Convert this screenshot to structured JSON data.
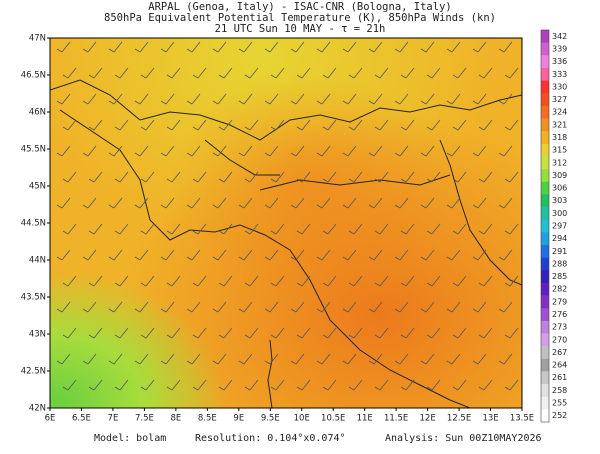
{
  "header": {
    "line1": "ARPAL (Genoa, Italy)  -  ISAC-CNR (Bologna, Italy)",
    "line2": "850hPa Equivalent Potential Temperature (K), 850hPa Winds (kn)",
    "line3": "21 UTC Sun 10 MAY  -  τ = 21h"
  },
  "map": {
    "lat_labels": [
      "47N",
      "46.5N",
      "46N",
      "45.5N",
      "45N",
      "44.5N",
      "44N",
      "43.5N",
      "43N",
      "42.5N",
      "42N"
    ],
    "lon_labels": [
      "6E",
      "6.5E",
      "7E",
      "7.5E",
      "8E",
      "8.5E",
      "9E",
      "9.5E",
      "10E",
      "10.5E",
      "11E",
      "11.5E",
      "12E",
      "12.5E",
      "13E",
      "13.5E"
    ]
  },
  "colorbar": {
    "labels": [
      342,
      339,
      336,
      333,
      330,
      327,
      324,
      321,
      318,
      315,
      312,
      309,
      306,
      303,
      300,
      297,
      294,
      291,
      288,
      285,
      282,
      279,
      276,
      273,
      270,
      267,
      264,
      261,
      258,
      255,
      252
    ],
    "colors": [
      "#b040c0",
      "#d060d0",
      "#f080e0",
      "#ff60a0",
      "#ff3030",
      "#f05020",
      "#f07020",
      "#f09020",
      "#f0b020",
      "#e8d030",
      "#c8e040",
      "#90e040",
      "#50d040",
      "#20c060",
      "#20c0a0",
      "#20c0d0",
      "#20a0e0",
      "#2070e0",
      "#2040d0",
      "#3020c0",
      "#6020c0",
      "#8030c0",
      "#a050d0",
      "#c080e0",
      "#d0a0e8",
      "#c0c0c0",
      "#a0a0a0",
      "#c8c8c8",
      "#e0e0e0",
      "#f0f0f0",
      "#ffffff"
    ]
  },
  "footer": {
    "model": "Model:  bolam",
    "resolution": "Resolution: 0.104°x0.074°",
    "analysis": "Analysis: Sun 00Z10MAY2026"
  }
}
